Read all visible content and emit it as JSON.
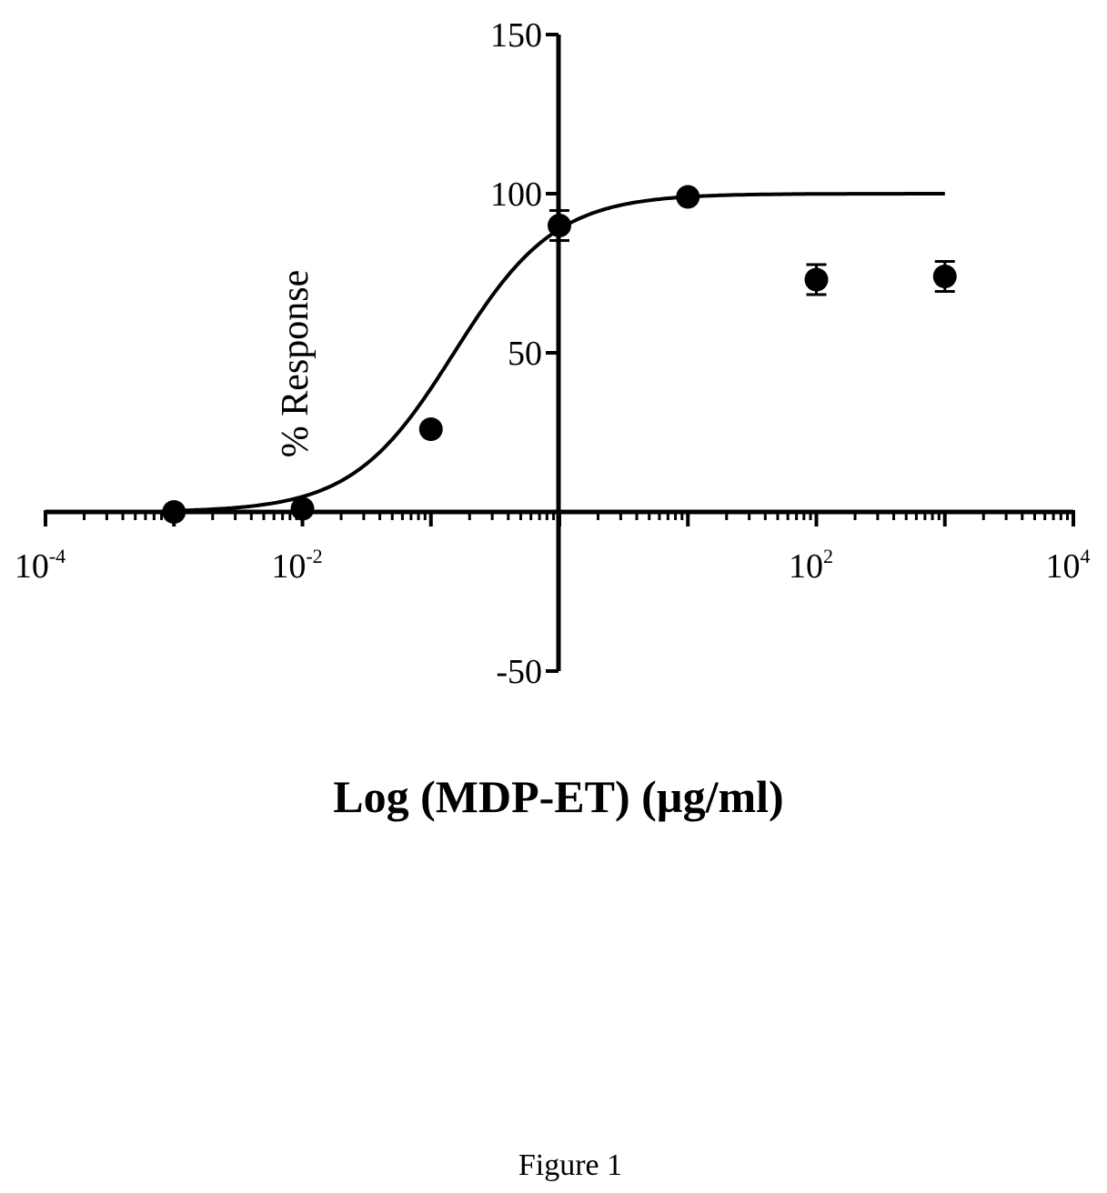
{
  "chart_data": {
    "type": "scatter",
    "title": "",
    "xlabel": "Log (MDP-ET) (µg/ml)",
    "ylabel": "% Response",
    "x_scale": "log",
    "xlim": [
      0.0001,
      10000
    ],
    "ylim": [
      -50,
      150
    ],
    "x_ticks": [
      {
        "value": 0.0001,
        "base": "10",
        "exp": "-4"
      },
      {
        "value": 0.01,
        "base": "10",
        "exp": "-2"
      },
      {
        "value": 100,
        "base": "10",
        "exp": "2"
      },
      {
        "value": 10000,
        "base": "10",
        "exp": "4"
      }
    ],
    "y_ticks": [
      {
        "value": 150,
        "label": "150"
      },
      {
        "value": 100,
        "label": "100"
      },
      {
        "value": 50,
        "label": "50"
      },
      {
        "value": -50,
        "label": "-50"
      }
    ],
    "series": [
      {
        "points": [
          {
            "x": 0.001,
            "y": 0
          },
          {
            "x": 0.01,
            "y": 1
          },
          {
            "x": 0.1,
            "y": 26
          },
          {
            "x": 1,
            "y": 90,
            "err": 3
          },
          {
            "x": 10,
            "y": 99
          },
          {
            "x": 100,
            "y": 73,
            "err": 3
          },
          {
            "x": 1000,
            "y": 74,
            "err": 3
          }
        ],
        "fit_curve": {
          "model": "sigmoid",
          "bottom": 0,
          "top": 100,
          "log_ec50": -0.82,
          "hill_slope": 1.1,
          "x_range": [
            0.001,
            1000
          ]
        }
      }
    ],
    "grid": false,
    "legend": "none"
  },
  "caption": "Figure 1",
  "style": {
    "ink": "#000000",
    "background": "#ffffff",
    "marker": "circle-filled"
  }
}
